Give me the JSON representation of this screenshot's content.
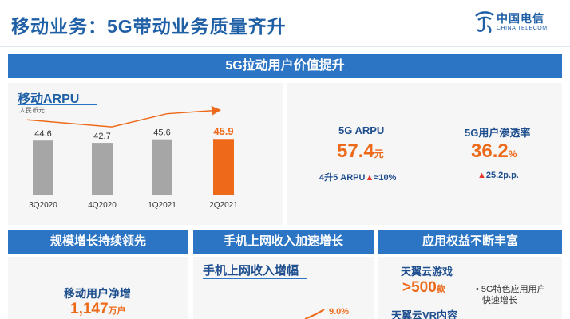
{
  "header": {
    "title": "移动业务：5G带动业务质量齐升",
    "logo_cn": "中国电信",
    "logo_en": "CHINA TELECOM"
  },
  "section_main": {
    "title": "5G拉动用户价值提升"
  },
  "arpu_chart": {
    "title": "移动ARPU",
    "unit": "人民币元"
  },
  "chart_data": {
    "type": "bar",
    "title": "移动ARPU",
    "ylabel": "人民币元",
    "categories": [
      "3Q2020",
      "4Q2020",
      "1Q2021",
      "2Q2021"
    ],
    "values": [
      44.6,
      42.7,
      45.6,
      45.9
    ],
    "labels": [
      "44.6",
      "42.7",
      "45.6",
      "45.9"
    ],
    "bar_colors": [
      "#a6a6a6",
      "#a6a6a6",
      "#a6a6a6",
      "#ee6a1a"
    ],
    "highlight_color": "#ee6a1a",
    "ylim": [
      0,
      55
    ],
    "trend_arrow": true
  },
  "kpi": {
    "arpu_label": "5G ARPU",
    "arpu_value": "57.4",
    "arpu_unit": "元",
    "arpu_sub_prefix": "4升5 ARPU",
    "arpu_sub_arrow": "▲",
    "arpu_sub_value": "≈10%",
    "pen_label": "5G用户渗透率",
    "pen_value": "36.2",
    "pen_unit": "%",
    "pen_sub_arrow": "▲",
    "pen_sub_value": "25.2p.p."
  },
  "bottom": {
    "left_title": "规模增长持续领先",
    "mid_title": "手机上网收入加速增长",
    "right_title": "应用权益不断丰富",
    "left_label": "移动用户净增",
    "left_value": "1,147",
    "left_unit": "万户",
    "mid_label": "手机上网收入增幅",
    "mid_pct": "9.0%",
    "right_game_label": "天翼云游戏",
    "right_game_value": ">500",
    "right_game_unit": "款",
    "right_vr_label": "天翼云VR内容",
    "right_bullet_1": "• 5G特色应用用户",
    "right_bullet_2": "快速增长"
  }
}
